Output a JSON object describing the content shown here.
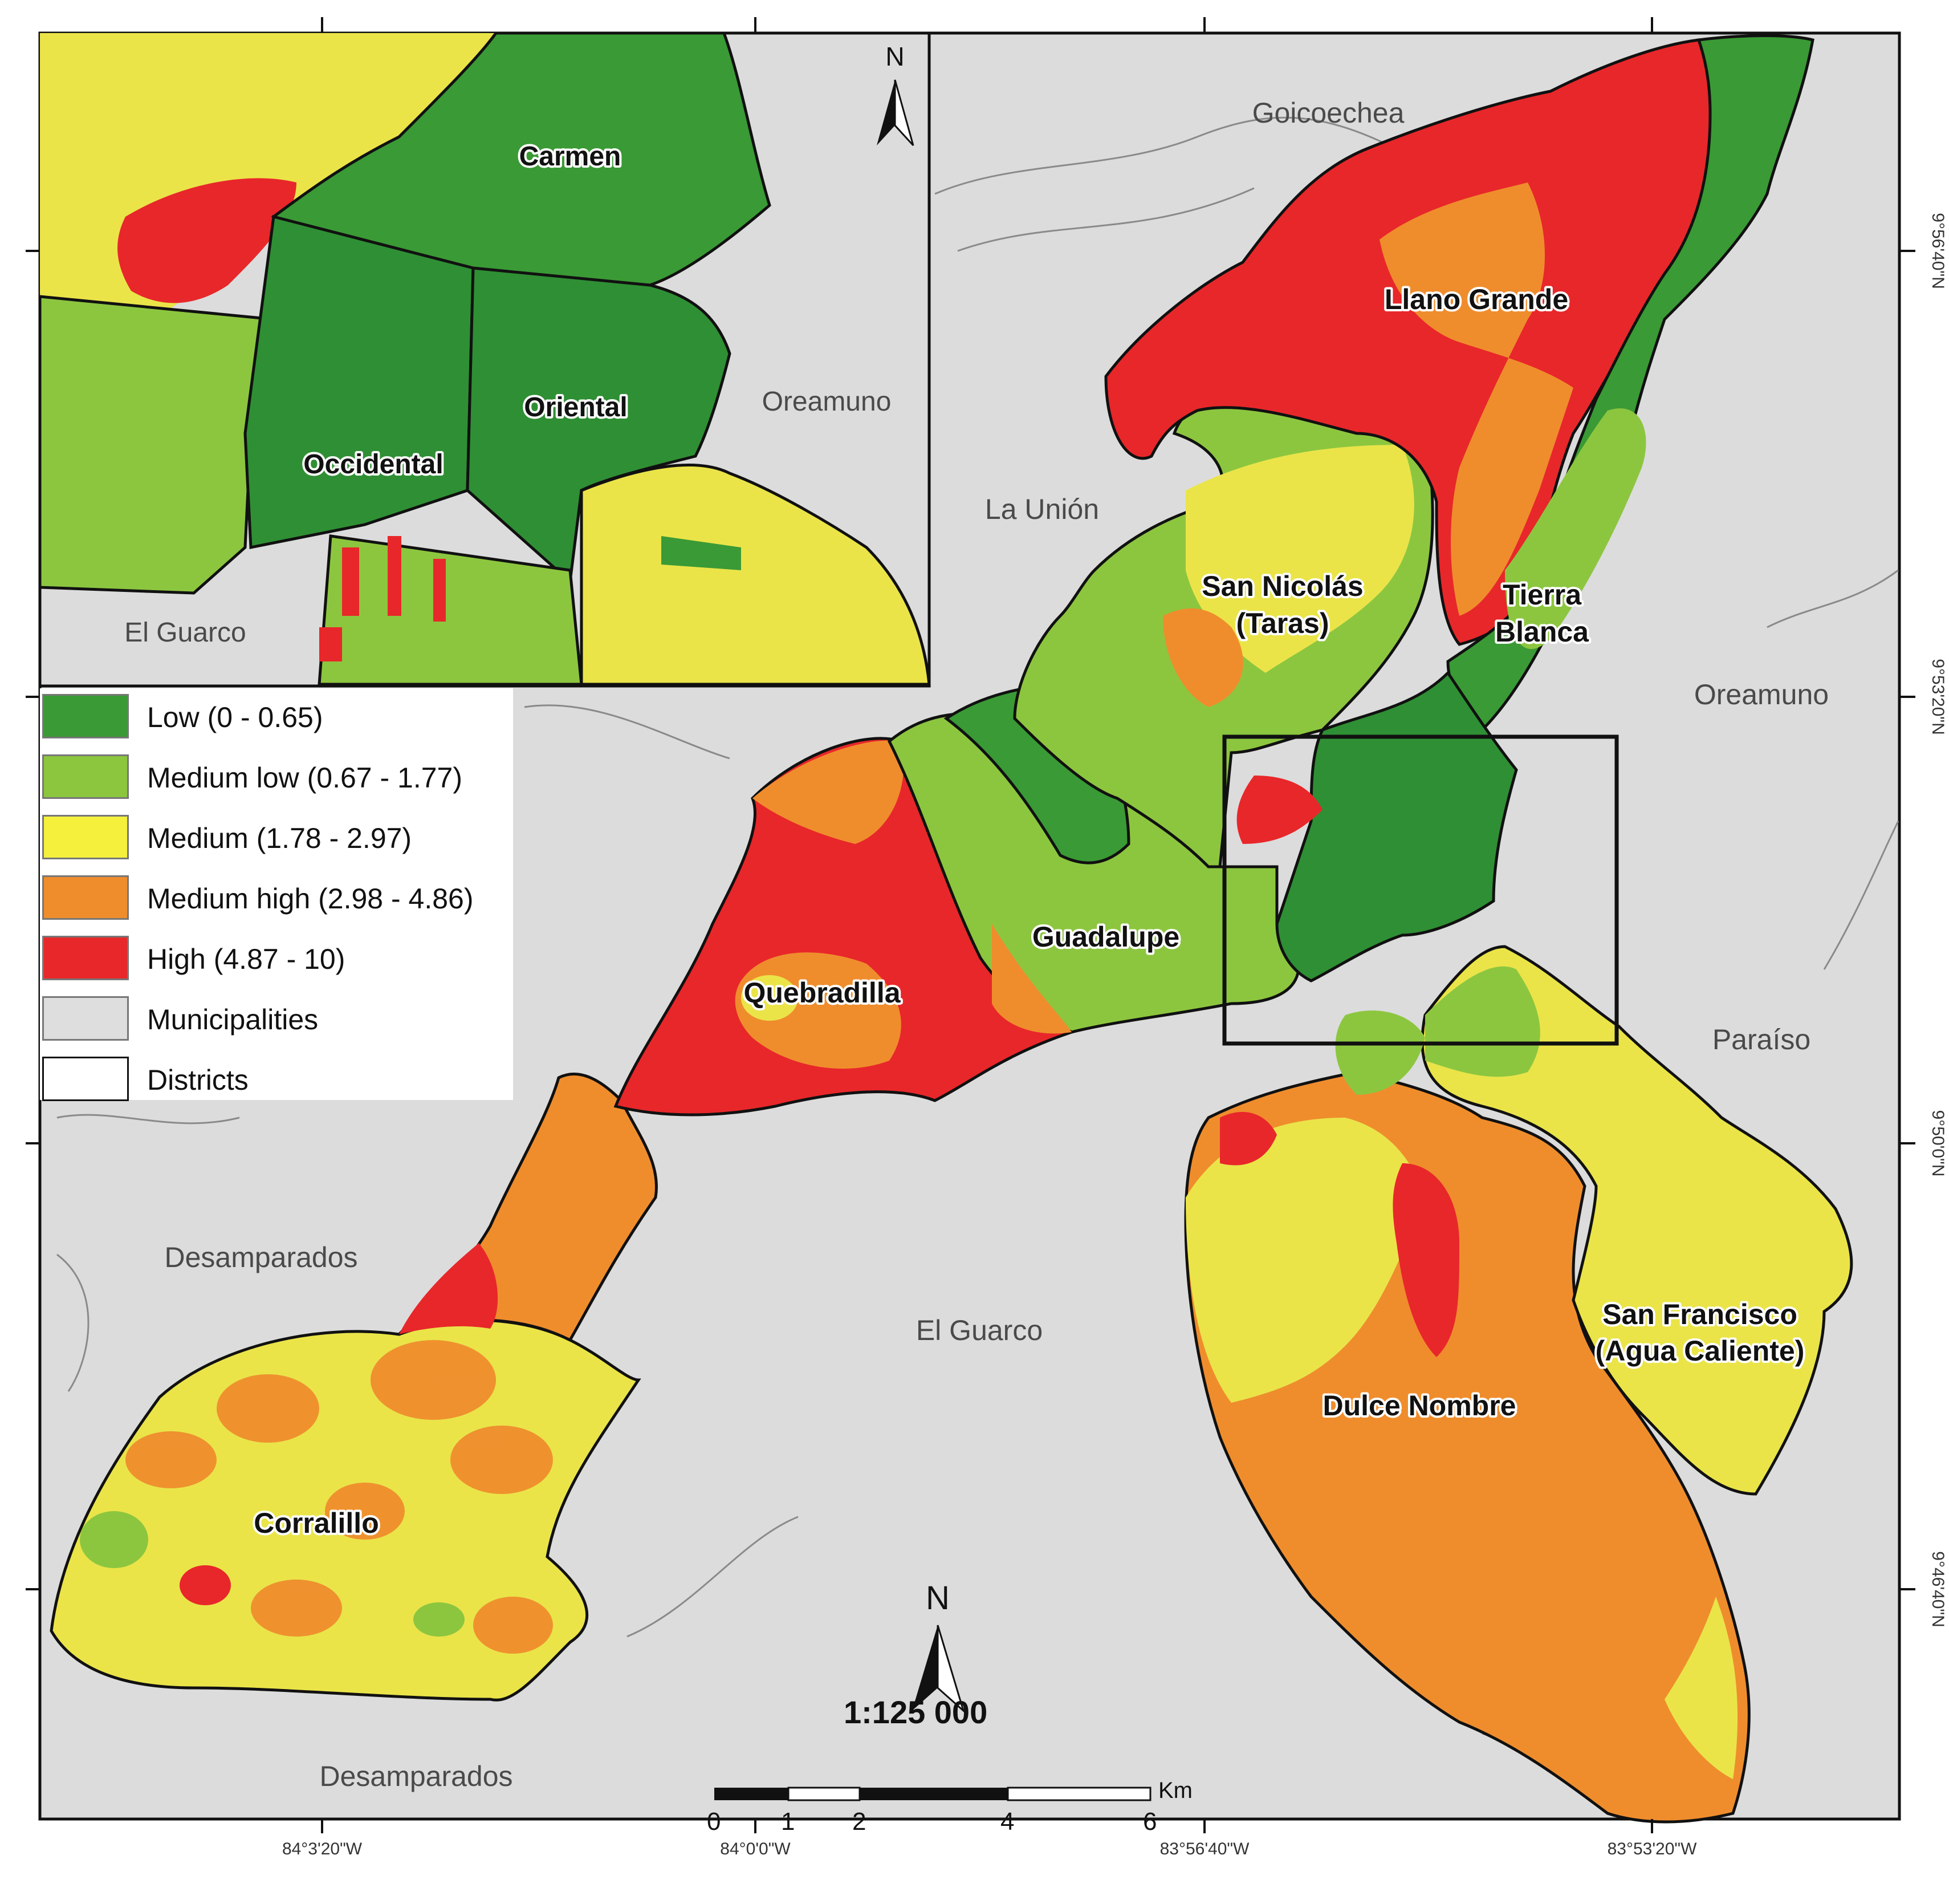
{
  "inset": {
    "districts": [
      "Carmen",
      "Oriental",
      "Occidental"
    ],
    "municipalities": [
      "Oreamuno",
      "El Guarco"
    ]
  },
  "main": {
    "districts": [
      "Llano Grande",
      "San Nicolás\n(Taras)",
      "Tierra\nBlanca",
      "Guadalupe",
      "Quebradilla",
      "Corralillo",
      "Dulce Nombre",
      "San Francisco\n(Agua Caliente)"
    ],
    "district_lines": {
      "san_nicolas": [
        "San Nicolás",
        "(Taras)"
      ],
      "tierra_blanca": [
        "Tierra",
        "Blanca"
      ],
      "san_francisco": [
        "San Francisco",
        "(Agua Caliente)"
      ]
    },
    "municipalities": [
      "Goicoechea",
      "La Unión",
      "Oreamuno",
      "Paraíso",
      "El Guarco",
      "Desamparados",
      "Desamparados"
    ]
  },
  "legend": [
    {
      "label": "Low (0 - 0.65)",
      "color": "#3a9a35"
    },
    {
      "label": "Medium low (0.67 - 1.77)",
      "color": "#8cc63f"
    },
    {
      "label": "Medium (1.78 - 2.97)",
      "color": "#f4f03c"
    },
    {
      "label": "Medium high (2.98 - 4.86)",
      "color": "#ef8d2d"
    },
    {
      "label": "High (4.87 - 10)",
      "color": "#e8272a"
    },
    {
      "label": "Municipalities",
      "color": "#dedede"
    },
    {
      "label": "Districts",
      "color": "#ffffff"
    }
  ],
  "north_arrow": "N",
  "scale": {
    "ratio": "1:125 000",
    "unit": "Km",
    "ticks": [
      "0",
      "1",
      "2",
      "4",
      "6"
    ]
  },
  "coordinates": {
    "lon": [
      "84°3'20\"W",
      "84°0'0\"W",
      "83°56'40\"W",
      "83°53'20\"W"
    ],
    "lat": [
      "9°56'40\"N",
      "9°53'20\"N",
      "9°50'0\"N",
      "9°46'40\"N"
    ]
  }
}
